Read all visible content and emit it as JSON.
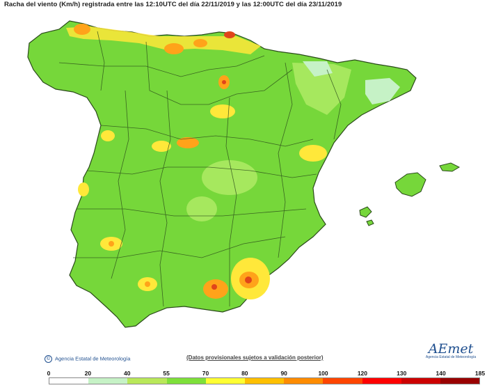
{
  "title": "Racha del viento (Km/h) registrada entre las 12:10UTC del día 22/11/2019 y las 12:00UTC del día 23/11/2019",
  "credit": "Agencia Estatal de Meteorología",
  "note": "(Datos provisionales sujetos a validación posterior)",
  "logo": {
    "name": "AEmet",
    "subtitle": "Agencia Estatal de Meteorología"
  },
  "legend": {
    "ticks": [
      "0",
      "20",
      "40",
      "55",
      "70",
      "80",
      "90",
      "100",
      "120",
      "130",
      "140",
      "185"
    ],
    "colors": [
      "#ffffff",
      "#c6f2c6",
      "#b9e85a",
      "#7ee03a",
      "#ffff33",
      "#ffc000",
      "#ff8c00",
      "#ff4500",
      "#ff0000",
      "#cc0000",
      "#990000"
    ]
  },
  "palette": {
    "base": "#76d73a",
    "light": "#a6e85e",
    "yellow": "#ffe83a",
    "orange": "#ffa31a",
    "red": "#e0451a",
    "pale": "#c6f2c6",
    "border": "#2a4a1a"
  }
}
